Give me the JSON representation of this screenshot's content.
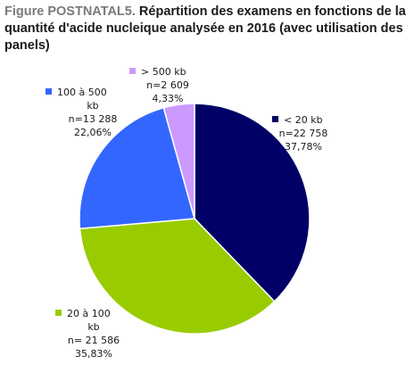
{
  "figure": {
    "prefix": "Figure POSTNATAL5.",
    "title": "Répartition des examens en fonctions de la quantité d'acide nucleique analysée en 2016 (avec utilisation des panels)"
  },
  "chart_data": {
    "type": "pie",
    "title": "Figure POSTNATAL5. Répartition des examens en fonctions de la quantité d'acide nucleique analysée en 2016 (avec utilisation des panels)",
    "legend": "none (labels next to slices)",
    "slices": [
      {
        "category": "< 20 kb",
        "value": 22758,
        "percent": 37.78,
        "color": "#000066",
        "label_lines": [
          "< 20 kb",
          "n=22 758",
          "37,78%"
        ]
      },
      {
        "category": "20 à 100 kb",
        "value": 21586,
        "percent": 35.83,
        "color": "#99cc00",
        "label_lines": [
          "20 à 100",
          "kb",
          "n= 21 586",
          "35,83%"
        ]
      },
      {
        "category": "100 à 500 kb",
        "value": 13288,
        "percent": 22.06,
        "color": "#3366ff",
        "label_lines": [
          "100 à 500",
          "kb",
          "n=13 288",
          "22,06%"
        ]
      },
      {
        "category": "> 500 kb",
        "value": 2609,
        "percent": 4.33,
        "color": "#cc99ff",
        "label_lines": [
          "> 500 kb",
          "n=2 609",
          "4,33%"
        ]
      }
    ]
  }
}
